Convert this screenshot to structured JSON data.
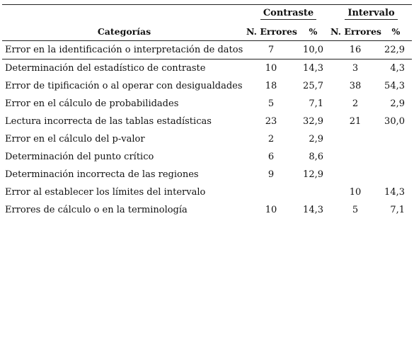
{
  "table": {
    "group_headers": {
      "contraste": "Contraste",
      "intervalo": "Intervalo"
    },
    "column_headers": {
      "categorias": "Categorías",
      "n_errores_contraste": "N. Errores",
      "pct_contraste": "%",
      "n_errores_intervalo": "N. Errores",
      "pct_intervalo": "%"
    },
    "rows": [
      {
        "categoria": "Error en la identificación o interpretación de datos",
        "c_n": "7",
        "c_pct": "10,0",
        "i_n": "16",
        "i_pct": "22,9"
      },
      {
        "categoria": "Determinación del estadístico de contraste",
        "c_n": "10",
        "c_pct": "14,3",
        "i_n": "3",
        "i_pct": "4,3"
      },
      {
        "categoria": "Error de tipificación o al operar con desigualdades",
        "c_n": "18",
        "c_pct": "25,7",
        "i_n": "38",
        "i_pct": "54,3"
      },
      {
        "categoria": "Error en el cálculo de probabilidades",
        "c_n": "5",
        "c_pct": "7,1",
        "i_n": "2",
        "i_pct": "2,9"
      },
      {
        "categoria": "Lectura incorrecta de las tablas estadísticas",
        "c_n": "23",
        "c_pct": "32,9",
        "i_n": "21",
        "i_pct": "30,0"
      },
      {
        "categoria": "Error en el cálculo del p-valor",
        "c_n": "2",
        "c_pct": "2,9",
        "i_n": "",
        "i_pct": ""
      },
      {
        "categoria": "Determinación del punto crítico",
        "c_n": "6",
        "c_pct": "8,6",
        "i_n": "",
        "i_pct": ""
      },
      {
        "categoria": "Determinación incorrecta de las regiones",
        "c_n": "9",
        "c_pct": "12,9",
        "i_n": "",
        "i_pct": ""
      },
      {
        "categoria": "Error al establecer los límites del intervalo",
        "c_n": "",
        "c_pct": "",
        "i_n": "10",
        "i_pct": "14,3"
      },
      {
        "categoria": "Errores de cálculo o en la terminología",
        "c_n": "10",
        "c_pct": "14,3",
        "i_n": "5",
        "i_pct": "7,1"
      }
    ]
  }
}
